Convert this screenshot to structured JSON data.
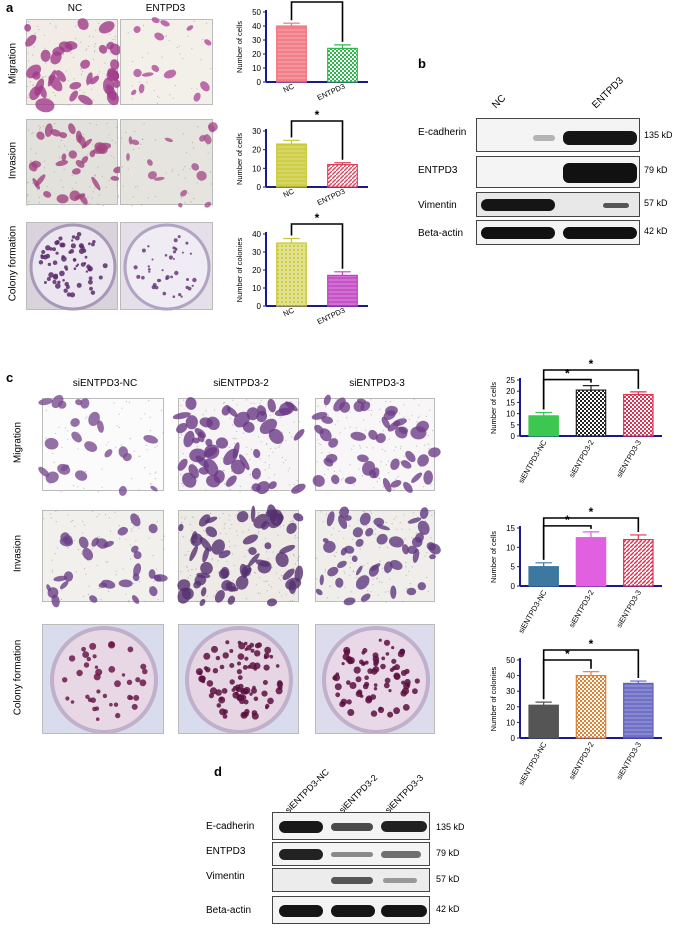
{
  "panel_a": {
    "label": "a",
    "columns": [
      "NC",
      "ENTPD3"
    ],
    "rows": [
      "Migration",
      "Invasion",
      "Colony formation"
    ]
  },
  "panel_b": {
    "label": "b",
    "lanes": [
      "NC",
      "ENTPD3"
    ],
    "blots": [
      {
        "name": "E-cadherin",
        "kd": "135 kD"
      },
      {
        "name": "ENTPD3",
        "kd": "79 kD"
      },
      {
        "name": "Vimentin",
        "kd": "57 kD"
      },
      {
        "name": "Beta-actin",
        "kd": "42 kD"
      }
    ]
  },
  "panel_c": {
    "label": "c",
    "columns": [
      "siENTPD3-NC",
      "siENTPD3-2",
      "siENTPD3-3"
    ],
    "rows": [
      "Migration",
      "Invasion",
      "Colony formation"
    ]
  },
  "panel_d": {
    "label": "d",
    "lanes": [
      "siENTPD3-NC",
      "siENTPD3-2",
      "siENTPD3-3"
    ],
    "blots": [
      {
        "name": "E-cadherin",
        "kd": "135 kD"
      },
      {
        "name": "ENTPD3",
        "kd": "79 kD"
      },
      {
        "name": "Vimentin",
        "kd": "57 kD"
      },
      {
        "name": "Beta-actin",
        "kd": "42 kD"
      }
    ]
  },
  "chart_data": [
    {
      "id": "a-migration",
      "type": "bar",
      "categories": [
        "NC",
        "ENTPD3"
      ],
      "values": [
        40,
        24
      ],
      "errors": [
        2,
        2.5
      ],
      "ylabel": "Number of cells",
      "ylim": [
        0,
        50
      ],
      "ticks": [
        0,
        10,
        20,
        30,
        40,
        50
      ],
      "colors": [
        "#f0707a",
        "#2db84a"
      ],
      "patterns": [
        "hstripe",
        "check"
      ],
      "significance": "*",
      "sig_pairs": [
        [
          0,
          1
        ]
      ]
    },
    {
      "id": "a-invasion",
      "type": "bar",
      "categories": [
        "NC",
        "ENTPD3"
      ],
      "values": [
        23,
        12
      ],
      "errors": [
        2,
        1
      ],
      "ylabel": "Number of cells",
      "ylim": [
        0,
        30
      ],
      "ticks": [
        0,
        10,
        20,
        30
      ],
      "colors": [
        "#c8c832",
        "#e0405a"
      ],
      "patterns": [
        "hstripe",
        "diag"
      ],
      "significance": "*",
      "sig_pairs": [
        [
          0,
          1
        ]
      ]
    },
    {
      "id": "a-colony",
      "type": "bar",
      "categories": [
        "NC",
        "ENTPD3"
      ],
      "values": [
        35,
        17
      ],
      "errors": [
        2.5,
        2
      ],
      "ylabel": "Number of colonies",
      "ylim": [
        0,
        40
      ],
      "ticks": [
        0,
        10,
        20,
        30,
        40
      ],
      "colors": [
        "#c8c832",
        "#c040c0"
      ],
      "patterns": [
        "dots",
        "hstripe"
      ],
      "significance": "*",
      "sig_pairs": [
        [
          0,
          1
        ]
      ]
    },
    {
      "id": "c-migration",
      "type": "bar",
      "categories": [
        "siENTPD3-NC",
        "siENTPD3-2",
        "siENTPD3-3"
      ],
      "values": [
        9,
        20.5,
        18.5
      ],
      "errors": [
        1.5,
        2,
        1.2
      ],
      "ylabel": "Number of cells",
      "ylim": [
        0,
        25
      ],
      "ticks": [
        0,
        5,
        10,
        15,
        20,
        25
      ],
      "colors": [
        "#3cc850",
        "#222222",
        "#e03050"
      ],
      "patterns": [
        "solid",
        "check",
        "check"
      ],
      "significance": "*",
      "sig_pairs": [
        [
          0,
          1
        ],
        [
          0,
          2
        ]
      ]
    },
    {
      "id": "c-invasion",
      "type": "bar",
      "categories": [
        "siENTPD3-NC",
        "siENTPD3-2",
        "siENTPD3-3"
      ],
      "values": [
        5,
        12.5,
        12
      ],
      "errors": [
        1,
        1.5,
        1.2
      ],
      "ylabel": "Number of cells",
      "ylim": [
        0,
        15
      ],
      "ticks": [
        0,
        5,
        10,
        15
      ],
      "colors": [
        "#3c78a0",
        "#e060e0",
        "#e03050"
      ],
      "patterns": [
        "solid",
        "solid",
        "diag"
      ],
      "significance": "*",
      "sig_pairs": [
        [
          0,
          1
        ],
        [
          0,
          2
        ]
      ]
    },
    {
      "id": "c-colony",
      "type": "bar",
      "categories": [
        "siENTPD3-NC",
        "siENTPD3-2",
        "siENTPD3-3"
      ],
      "values": [
        21,
        40,
        35
      ],
      "errors": [
        2,
        2.5,
        1.5
      ],
      "ylabel": "Number of colonies",
      "ylim": [
        0,
        50
      ],
      "ticks": [
        0,
        10,
        20,
        30,
        40,
        50
      ],
      "colors": [
        "#555555",
        "#e08030",
        "#6060c0"
      ],
      "patterns": [
        "solid",
        "check",
        "hstripe"
      ],
      "significance": "*",
      "sig_pairs": [
        [
          0,
          1
        ],
        [
          0,
          2
        ]
      ]
    }
  ]
}
